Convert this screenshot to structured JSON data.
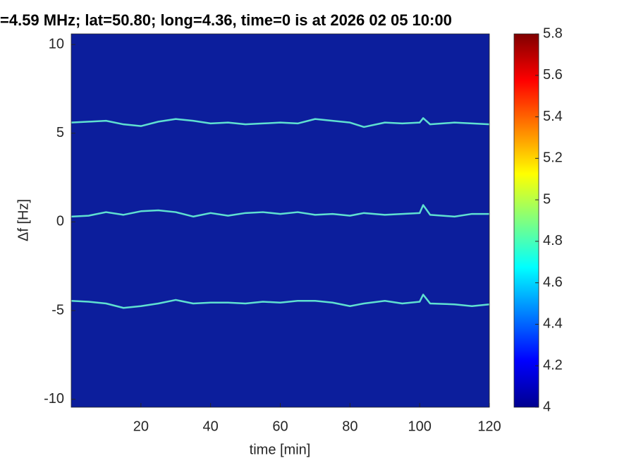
{
  "chart_data": {
    "type": "spectrogram",
    "title": "=4.59 MHz;  lat=50.80; long=4.36, time=0 is at 2026 02 05 10:00",
    "x_label": "time [min]",
    "y_label": "Δf [Hz]",
    "xlim": [
      0,
      120
    ],
    "xticks": [
      20,
      40,
      60,
      80,
      100,
      120
    ],
    "ylim": [
      -10.45,
      10.6
    ],
    "yticks": [
      -10,
      -5,
      0,
      5,
      10
    ],
    "clim": [
      4,
      5.8
    ],
    "cticks": [
      4,
      4.2,
      4.4,
      4.6,
      4.8,
      5,
      5.2,
      5.4,
      5.6,
      5.8
    ],
    "background_color": "#0c1e9c",
    "x": [
      0,
      5,
      10,
      15,
      20,
      25,
      30,
      35,
      40,
      45,
      50,
      55,
      60,
      65,
      70,
      75,
      80,
      84,
      90,
      95,
      100,
      101,
      103,
      110,
      115,
      120
    ],
    "series": [
      {
        "color": "#5fe0d0",
        "values": [
          5.6,
          5.65,
          5.7,
          5.5,
          5.4,
          5.65,
          5.8,
          5.7,
          5.55,
          5.6,
          5.5,
          5.55,
          5.6,
          5.55,
          5.8,
          5.7,
          5.6,
          5.35,
          5.6,
          5.55,
          5.6,
          5.85,
          5.5,
          5.6,
          5.55,
          5.5
        ]
      },
      {
        "color": "#5fe0d0",
        "values": [
          0.3,
          0.35,
          0.55,
          0.4,
          0.6,
          0.65,
          0.55,
          0.3,
          0.5,
          0.35,
          0.5,
          0.55,
          0.45,
          0.55,
          0.4,
          0.45,
          0.35,
          0.5,
          0.4,
          0.45,
          0.5,
          0.95,
          0.4,
          0.3,
          0.45,
          0.45
        ]
      },
      {
        "color": "#5fe0d0",
        "values": [
          -4.45,
          -4.5,
          -4.6,
          -4.85,
          -4.75,
          -4.6,
          -4.4,
          -4.6,
          -4.55,
          -4.55,
          -4.6,
          -4.5,
          -4.55,
          -4.45,
          -4.45,
          -4.55,
          -4.75,
          -4.6,
          -4.45,
          -4.6,
          -4.5,
          -4.1,
          -4.6,
          -4.65,
          -4.75,
          -4.65
        ]
      }
    ]
  }
}
